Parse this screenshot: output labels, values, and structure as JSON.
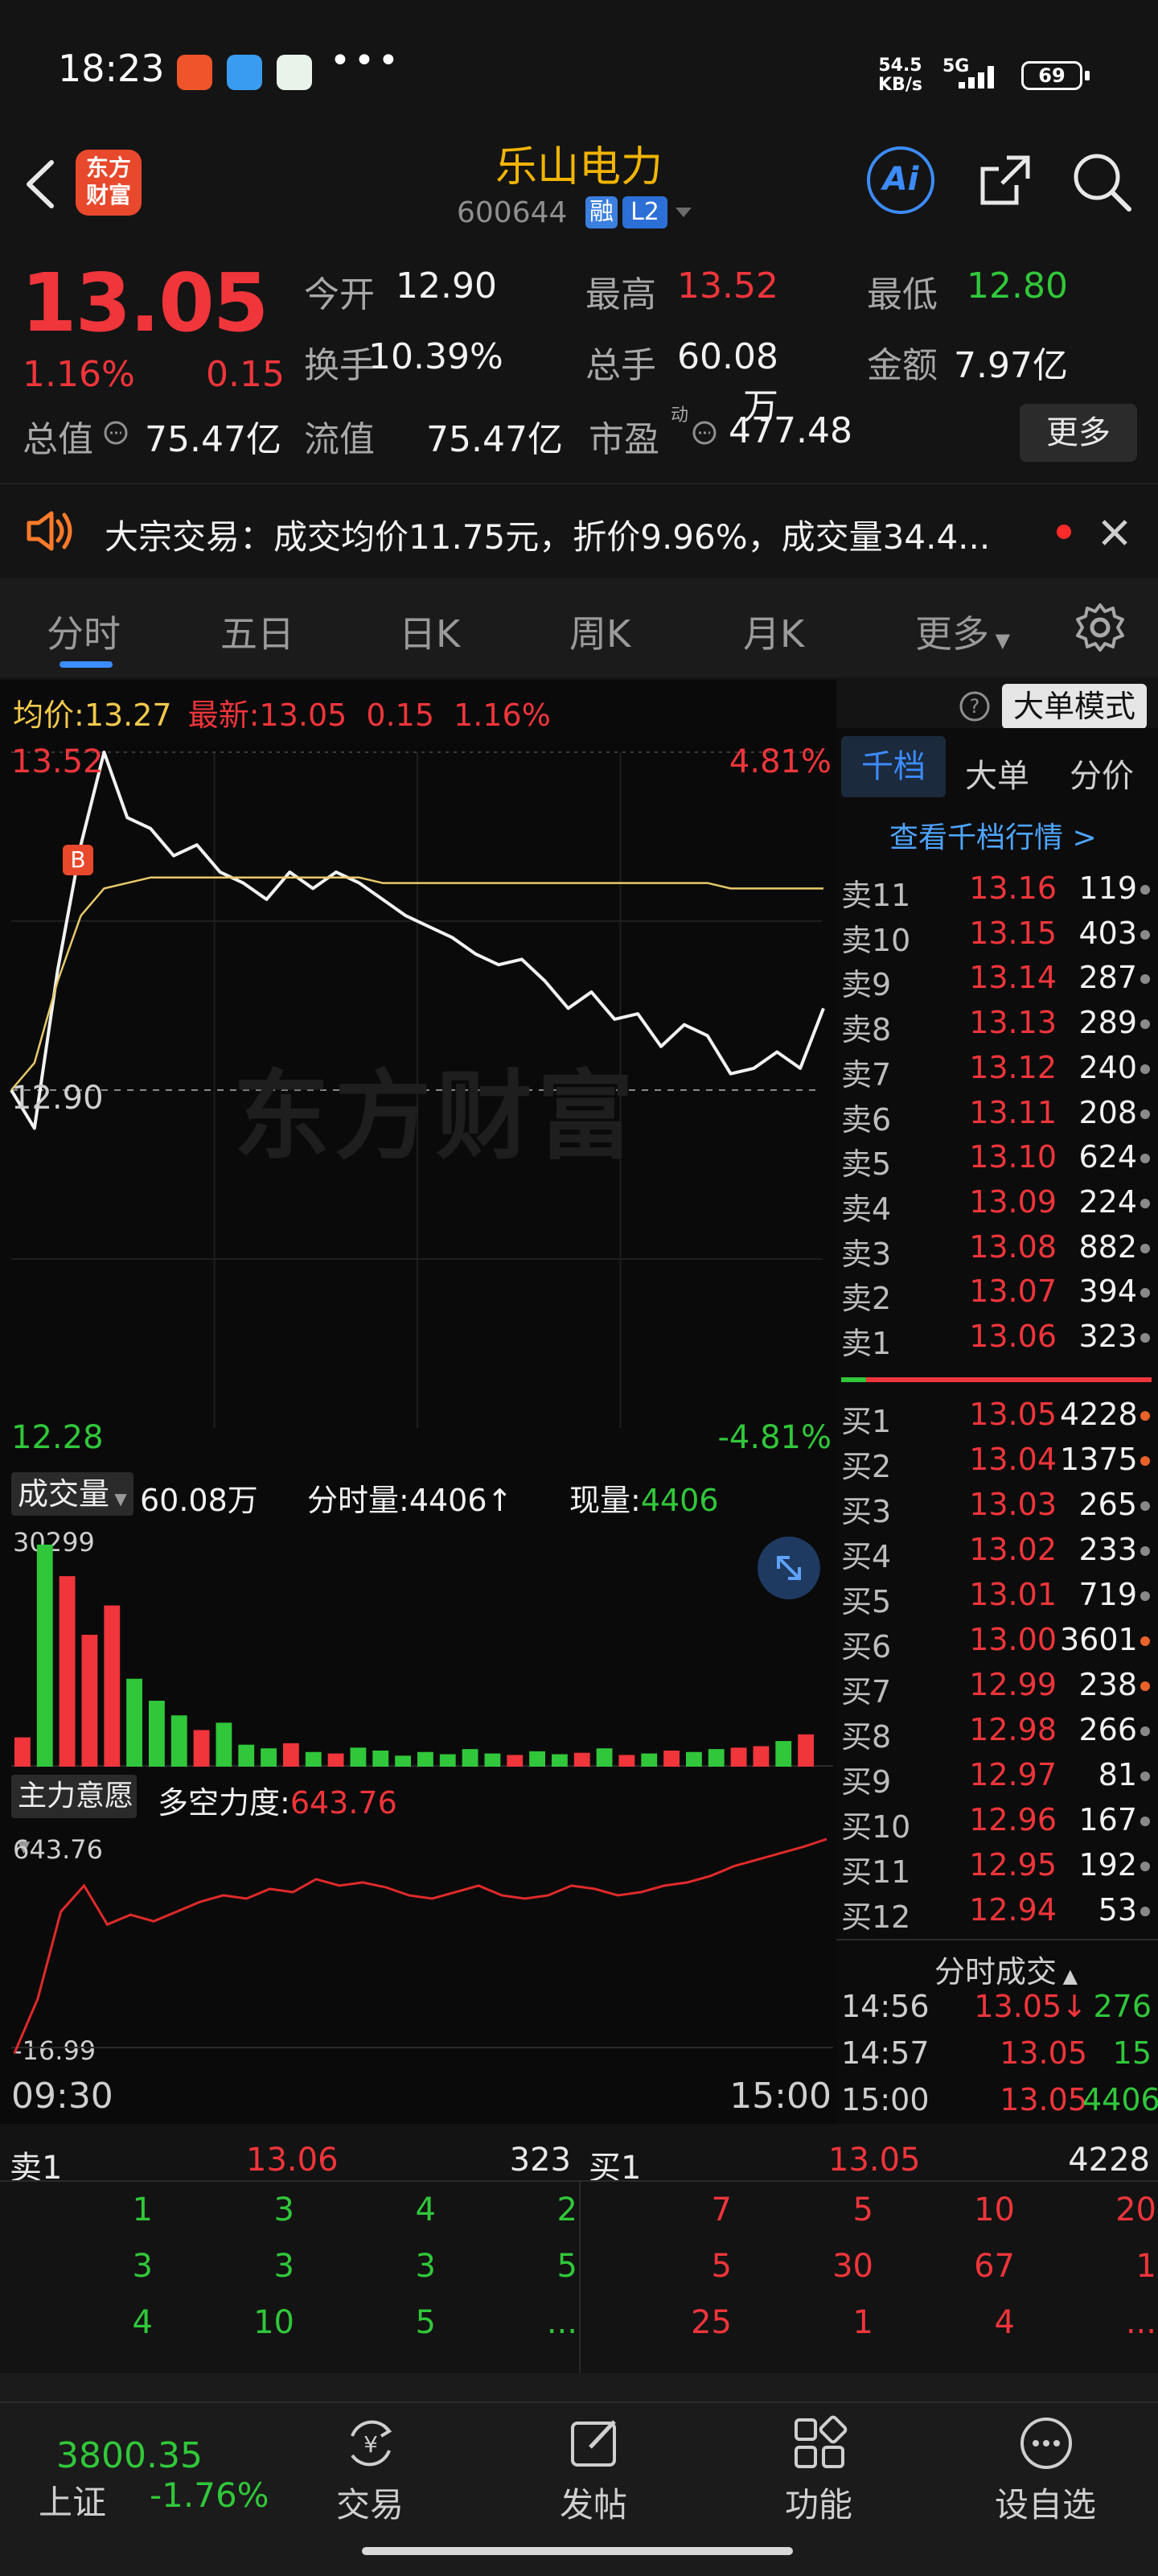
{
  "status_bar": {
    "time": "18:23",
    "speed_value": "54.5",
    "speed_unit": "KB/s",
    "network": "5G",
    "battery": "69",
    "overflow_icon": "more-dots-icon"
  },
  "header": {
    "logo_line1": "东方",
    "logo_line2": "财富",
    "stock_name": "乐山电力",
    "stock_code": "600644",
    "tag_margin": "融",
    "tag_level": "L2",
    "ai_label": "Ai"
  },
  "quote": {
    "price": "13.05",
    "change_pct": "1.16%",
    "change": "0.15",
    "fields": [
      {
        "label": "今开",
        "value": "12.90",
        "color": "white"
      },
      {
        "label": "最高",
        "value": "13.52",
        "color": "red"
      },
      {
        "label": "最低",
        "value": "12.80",
        "color": "green"
      },
      {
        "label": "换手",
        "value": "10.39%",
        "color": "white"
      },
      {
        "label": "总手",
        "value": "60.08万",
        "color": "white"
      },
      {
        "label": "金额",
        "value": "7.97亿",
        "color": "white"
      },
      {
        "label": "总值",
        "value": "75.47亿",
        "color": "white"
      },
      {
        "label": "流值",
        "value": "75.47亿",
        "color": "white"
      },
      {
        "label": "市盈",
        "value": "477.48",
        "color": "white"
      }
    ],
    "pe_sup": "动",
    "more_label": "更多"
  },
  "notice": {
    "text": "大宗交易：成交均价11.75元，折价9.96%，成交量34.4..."
  },
  "tabs": [
    "分时",
    "五日",
    "日K",
    "周K",
    "月K",
    "更多"
  ],
  "chart_info": {
    "avg_label": "均价:",
    "avg_value": "13.27",
    "latest_label": "最新:",
    "latest_value": "13.05",
    "latest_change": "0.15",
    "latest_pct": "1.16%",
    "big_order_mode": "大单模式"
  },
  "chart_axes": {
    "high": "13.52",
    "high_pct": "4.81%",
    "mid": "12.90",
    "low": "12.28",
    "low_pct": "-4.81%",
    "time_start": "09:30",
    "time_end": "15:00",
    "marker": "B",
    "watermark": "东方财富"
  },
  "volume_bar": {
    "label": "成交量",
    "total": "60.08万",
    "min_label": "分时量:",
    "min_value": "4406↑",
    "now_label": "现量:",
    "now_value": "4406",
    "max": "30299"
  },
  "force_bar": {
    "label": "主力意愿",
    "power_label": "多空力度:",
    "power_value": "643.76",
    "max": "643.76",
    "min": "-16.99"
  },
  "chart_data": {
    "type": "line",
    "x_range": [
      "09:30",
      "15:00"
    ],
    "y_range": [
      12.28,
      13.52
    ],
    "prev_close": 12.9,
    "series": [
      {
        "name": "最新",
        "values": [
          12.9,
          12.83,
          13.12,
          13.35,
          13.52,
          13.4,
          13.38,
          13.33,
          13.35,
          13.3,
          13.28,
          13.25,
          13.3,
          13.27,
          13.3,
          13.28,
          13.25,
          13.22,
          13.2,
          13.18,
          13.15,
          13.13,
          13.14,
          13.1,
          13.05,
          13.08,
          13.03,
          13.04,
          12.98,
          13.02,
          13.0,
          12.93,
          12.94,
          12.97,
          12.94,
          13.05
        ]
      },
      {
        "name": "均价",
        "values": [
          12.9,
          12.95,
          13.1,
          13.22,
          13.27,
          13.28,
          13.29,
          13.29,
          13.29,
          13.29,
          13.29,
          13.29,
          13.29,
          13.29,
          13.29,
          13.29,
          13.28,
          13.28,
          13.28,
          13.28,
          13.28,
          13.28,
          13.28,
          13.28,
          13.28,
          13.28,
          13.28,
          13.28,
          13.28,
          13.28,
          13.28,
          13.27,
          13.27,
          13.27,
          13.27,
          13.27
        ]
      }
    ],
    "volume": [
      4000,
      30299,
      26000,
      18000,
      22000,
      12000,
      9000,
      7000,
      5000,
      6000,
      3000,
      2500,
      3200,
      2000,
      1800,
      2600,
      2200,
      1500,
      2000,
      1700,
      2400,
      1800,
      1600,
      2100,
      1700,
      1900,
      2500,
      1600,
      1800,
      2200,
      2000,
      2400,
      2600,
      2800,
      3500,
      4406
    ],
    "force": [
      -16.99,
      150,
      420,
      500,
      380,
      410,
      390,
      420,
      450,
      470,
      460,
      490,
      480,
      520,
      500,
      510,
      495,
      470,
      460,
      480,
      500,
      470,
      460,
      470,
      500,
      490,
      470,
      480,
      500,
      510,
      530,
      560,
      580,
      600,
      620,
      643.76
    ]
  },
  "orderbook": {
    "tabs": [
      "千档",
      "大单",
      "分价"
    ],
    "link": "查看千档行情 >",
    "sell": [
      {
        "label": "卖11",
        "price": "13.16",
        "vol": "119"
      },
      {
        "label": "卖10",
        "price": "13.15",
        "vol": "403"
      },
      {
        "label": "卖9",
        "price": "13.14",
        "vol": "287"
      },
      {
        "label": "卖8",
        "price": "13.13",
        "vol": "289"
      },
      {
        "label": "卖7",
        "price": "13.12",
        "vol": "240"
      },
      {
        "label": "卖6",
        "price": "13.11",
        "vol": "208"
      },
      {
        "label": "卖5",
        "price": "13.10",
        "vol": "624"
      },
      {
        "label": "卖4",
        "price": "13.09",
        "vol": "224"
      },
      {
        "label": "卖3",
        "price": "13.08",
        "vol": "882"
      },
      {
        "label": "卖2",
        "price": "13.07",
        "vol": "394"
      },
      {
        "label": "卖1",
        "price": "13.06",
        "vol": "323"
      }
    ],
    "buy": [
      {
        "label": "买1",
        "price": "13.05",
        "vol": "4228",
        "dot": "#e8622a"
      },
      {
        "label": "买2",
        "price": "13.04",
        "vol": "1375",
        "dot": "#e8622a"
      },
      {
        "label": "买3",
        "price": "13.03",
        "vol": "265",
        "dot": "#888"
      },
      {
        "label": "买4",
        "price": "13.02",
        "vol": "233",
        "dot": "#888"
      },
      {
        "label": "买5",
        "price": "13.01",
        "vol": "719",
        "dot": "#888"
      },
      {
        "label": "买6",
        "price": "13.00",
        "vol": "3601",
        "dot": "#e8622a"
      },
      {
        "label": "买7",
        "price": "12.99",
        "vol": "238",
        "dot": "#e8622a"
      },
      {
        "label": "买8",
        "price": "12.98",
        "vol": "266",
        "dot": "#888"
      },
      {
        "label": "买9",
        "price": "12.97",
        "vol": "81",
        "dot": "#888"
      },
      {
        "label": "买10",
        "price": "12.96",
        "vol": "167",
        "dot": "#888"
      },
      {
        "label": "买11",
        "price": "12.95",
        "vol": "192",
        "dot": "#888"
      },
      {
        "label": "买12",
        "price": "12.94",
        "vol": "53",
        "dot": "#888"
      }
    ],
    "ticks_title": "分时成交",
    "ticks": [
      {
        "time": "14:56",
        "price": "13.05↓",
        "vol": "276",
        "vcolor": "green"
      },
      {
        "time": "14:57",
        "price": "13.05",
        "vol": "15",
        "vcolor": "green"
      },
      {
        "time": "15:00",
        "price": "13.05",
        "vol": "4406",
        "vcolor": "green"
      }
    ]
  },
  "depth": {
    "sell_label": "卖1",
    "sell_price": "13.06",
    "sell_vol": "323",
    "buy_label": "买1",
    "buy_price": "13.05",
    "buy_vol": "4228",
    "sell_queue": [
      [
        "1",
        "3",
        "4",
        "2"
      ],
      [
        "3",
        "3",
        "3",
        "5"
      ],
      [
        "4",
        "10",
        "5",
        "..."
      ]
    ],
    "buy_queue": [
      [
        "7",
        "5",
        "10",
        "20"
      ],
      [
        "5",
        "30",
        "67",
        "1"
      ],
      [
        "25",
        "1",
        "4",
        "..."
      ]
    ]
  },
  "bottom_nav": {
    "index_value": "3800.35",
    "index_name": "上证",
    "index_change": "-1.76%",
    "items": [
      "交易",
      "发帖",
      "功能",
      "设自选"
    ]
  },
  "colors": {
    "up": "#f0353b",
    "down": "#31c73a",
    "accent": "#3c8cff",
    "brand": "#e8482c"
  }
}
